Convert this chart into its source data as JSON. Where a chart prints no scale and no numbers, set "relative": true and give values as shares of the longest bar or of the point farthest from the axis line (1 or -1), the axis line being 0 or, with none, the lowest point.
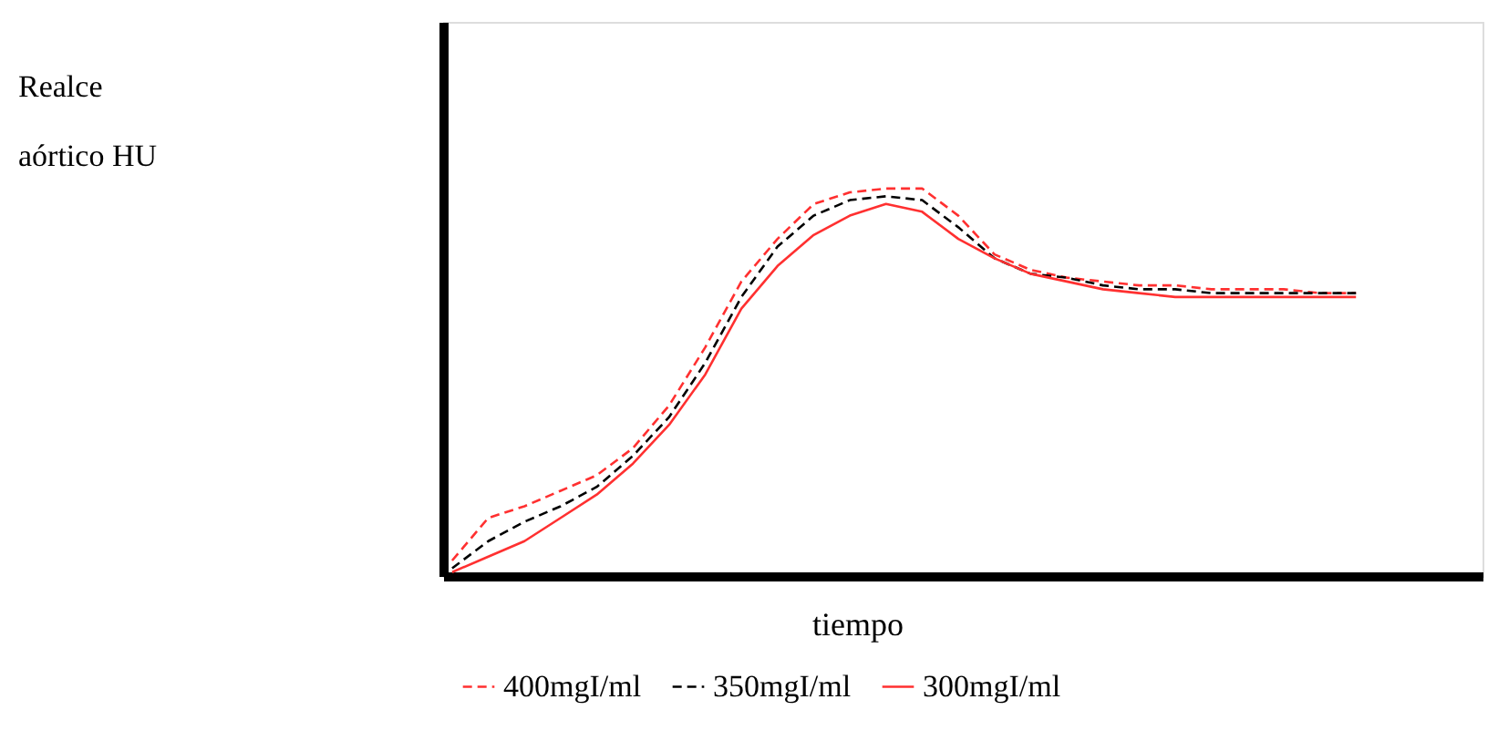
{
  "chart_data": {
    "type": "line",
    "relative": true,
    "xlabel": "tiempo",
    "annotations": [
      "Realce aórtico HU"
    ],
    "categories": [
      null,
      null,
      null,
      null,
      null,
      null,
      null,
      null,
      null,
      null,
      null,
      null,
      null,
      null,
      null,
      null,
      null,
      null,
      null,
      null,
      null,
      null,
      null,
      null,
      null,
      null
    ],
    "series": [
      {
        "name": "400mgI/ml",
        "color": "#ff3030",
        "line_style": "dashed",
        "values": [
          0.04,
          0.15,
          0.18,
          0.22,
          0.26,
          0.33,
          0.44,
          0.59,
          0.76,
          0.87,
          0.96,
          0.99,
          1,
          1,
          0.93,
          0.83,
          0.79,
          0.77,
          0.76,
          0.75,
          0.75,
          0.74,
          0.74,
          0.74,
          0.73,
          0.73
        ]
      },
      {
        "name": "350mgI/ml",
        "color": "#000000",
        "line_style": "dashed",
        "values": [
          0.02,
          0.09,
          0.14,
          0.18,
          0.23,
          0.31,
          0.41,
          0.55,
          0.72,
          0.85,
          0.93,
          0.97,
          0.98,
          0.97,
          0.9,
          0.82,
          0.78,
          0.77,
          0.75,
          0.74,
          0.74,
          0.73,
          0.73,
          0.73,
          0.73,
          0.73
        ]
      },
      {
        "name": "300mgI/ml",
        "color": "#ff3030",
        "line_style": "solid",
        "values": [
          0.01,
          0.05,
          0.09,
          0.15,
          0.21,
          0.29,
          0.39,
          0.52,
          0.69,
          0.8,
          0.88,
          0.93,
          0.96,
          0.94,
          0.87,
          0.82,
          0.78,
          0.76,
          0.74,
          0.73,
          0.72,
          0.72,
          0.72,
          0.72,
          0.72,
          0.72
        ]
      }
    ],
    "legend": "bottom",
    "tick_labels": false,
    "grid": false
  }
}
